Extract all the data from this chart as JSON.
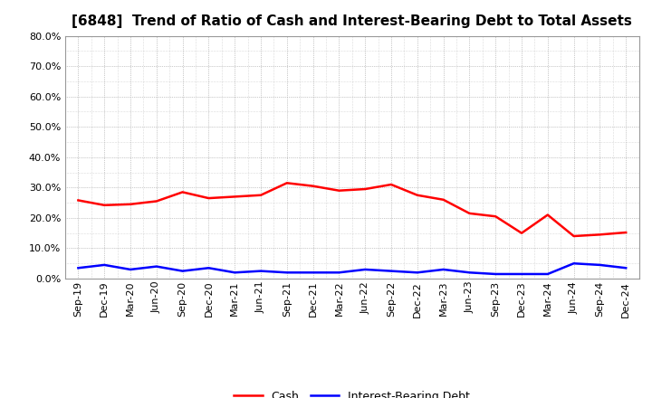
{
  "title": "[6848]  Trend of Ratio of Cash and Interest-Bearing Debt to Total Assets",
  "x_labels": [
    "Sep-19",
    "Dec-19",
    "Mar-20",
    "Jun-20",
    "Sep-20",
    "Dec-20",
    "Mar-21",
    "Jun-21",
    "Sep-21",
    "Dec-21",
    "Mar-22",
    "Jun-22",
    "Sep-22",
    "Dec-22",
    "Mar-23",
    "Jun-23",
    "Sep-23",
    "Dec-23",
    "Mar-24",
    "Jun-24",
    "Sep-24",
    "Dec-24"
  ],
  "cash": [
    25.8,
    24.2,
    24.5,
    25.5,
    28.5,
    26.5,
    27.0,
    27.5,
    31.5,
    30.5,
    29.0,
    29.5,
    31.0,
    27.5,
    26.0,
    21.5,
    20.5,
    15.0,
    21.0,
    14.0,
    14.5,
    15.2
  ],
  "interest_bearing_debt": [
    3.5,
    4.5,
    3.0,
    4.0,
    2.5,
    3.5,
    2.0,
    2.5,
    2.0,
    2.0,
    2.0,
    3.0,
    2.5,
    2.0,
    3.0,
    2.0,
    1.5,
    1.5,
    1.5,
    5.0,
    4.5,
    3.5
  ],
  "cash_color": "#ff0000",
  "debt_color": "#0000ff",
  "background_color": "#ffffff",
  "grid_color": "#999999",
  "ylim": [
    0,
    80
  ],
  "yticks": [
    0,
    10,
    20,
    30,
    40,
    50,
    60,
    70,
    80
  ],
  "legend_labels": [
    "Cash",
    "Interest-Bearing Debt"
  ],
  "title_fontsize": 11,
  "tick_fontsize": 8
}
